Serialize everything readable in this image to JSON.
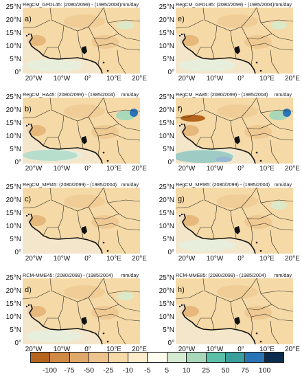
{
  "panels": [
    {
      "title": "RegCM_GFDL45: (2080/2099) - (1985/2004)",
      "units": "mm/day",
      "label": "a)",
      "wet": 1
    },
    {
      "title": "RegCM_GFDL85: (2080/2099) - (1985/2004)",
      "units": "mm/day",
      "label": "e)",
      "wet": 1
    },
    {
      "title": "RegCM_HA45: (2080/2099) - (1985/2004)",
      "units": "mm/day",
      "label": "b)",
      "wet": 2
    },
    {
      "title": "RegCM_HA85: (2080/2099) - (1985/2004)",
      "units": "mm/day",
      "label": "f)",
      "wet": 3
    },
    {
      "title": "RegCM_MPI45: (2080/2099) - (1985/2004)",
      "units": "mm/day",
      "label": "c)",
      "wet": 0
    },
    {
      "title": "RegCM_MPI85: (2080/2099) - (1985/2004)",
      "units": "mm/day",
      "label": "g)",
      "wet": 1
    },
    {
      "title": "RCM-MME45: (2080/2099) - (1985/2004)",
      "units": "mm/day",
      "label": "d)",
      "wet": 1
    },
    {
      "title": "RCM-MME85: (2080/2099) - (1985/2004)",
      "units": "mm/day",
      "label": "h)",
      "wet": 0
    }
  ],
  "lat_labels": [
    "25°N",
    "20°N",
    "15°N",
    "10°N",
    "5°N",
    "0°"
  ],
  "lon_labels": [
    "20°W",
    "10°W",
    "0°",
    "10°E",
    "20°E"
  ],
  "colorbar": {
    "labels": [
      "-100",
      "-75",
      "-50",
      "-25",
      "-10",
      "-5",
      "5",
      "10",
      "25",
      "50",
      "75",
      "100"
    ],
    "colors": [
      "#b5651d",
      "#cf8a45",
      "#e0a96a",
      "#edc48d",
      "#f5d9a6",
      "#fbeccb",
      "#fffdf0",
      "#d6ecd2",
      "#a8d8b9",
      "#5cbfa7",
      "#3a9e9c",
      "#2a74b8",
      "#0b2d4d"
    ]
  }
}
